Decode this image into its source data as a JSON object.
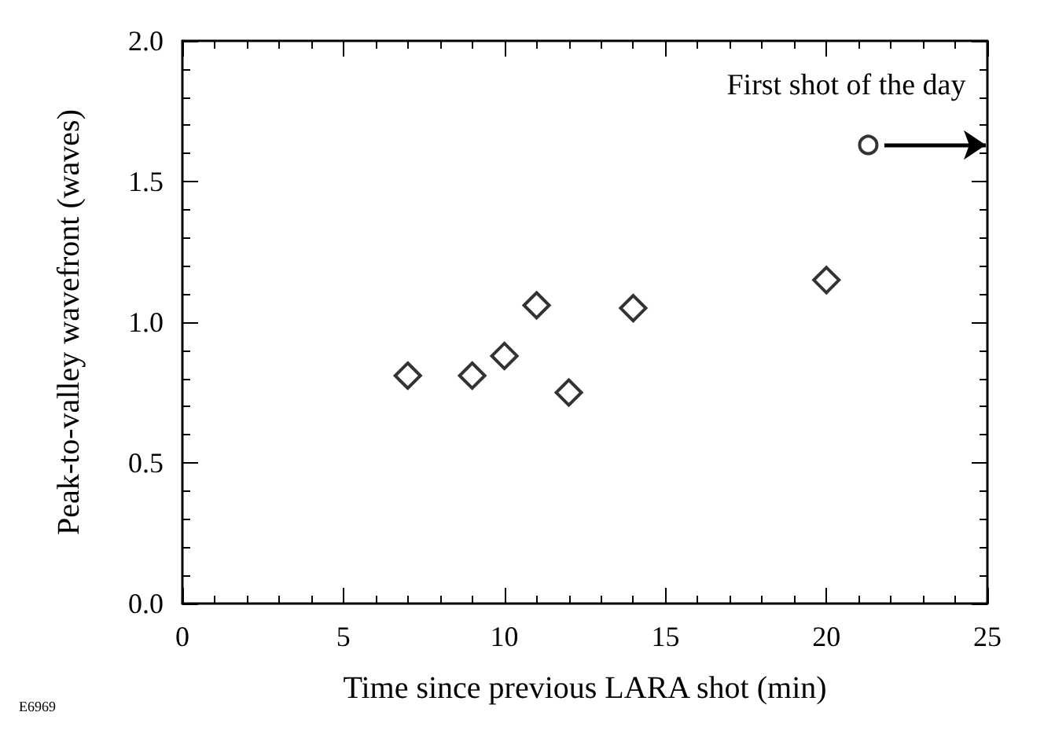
{
  "chart_data": {
    "type": "scatter",
    "xlabel": "Time since previous LARA shot (min)",
    "ylabel": "Peak-to-valley wavefront (waves)",
    "xlim": [
      0,
      25
    ],
    "xticks": [
      {
        "value": 0,
        "label": "0"
      },
      5,
      10,
      15,
      20,
      25
    ],
    "ylim": [
      0,
      2
    ],
    "yticks": [
      {
        "value": 0,
        "label": "0.0"
      },
      {
        "value": 0.5,
        "label": "0.5"
      },
      {
        "value": 1,
        "label": "1.0"
      },
      {
        "value": 1.5,
        "label": "1.5"
      },
      {
        "value": 2,
        "label": "2.0"
      }
    ],
    "grid": false,
    "series": [
      {
        "color": "#000000",
        "marker": "diamond",
        "x": [
          7,
          9,
          10,
          11,
          12,
          14,
          20
        ],
        "values": [
          0.81,
          0.81,
          0.88,
          1.06,
          0.75,
          1.05,
          1.15
        ]
      },
      {
        "color": "#000000",
        "marker": "circle",
        "x": [
          21.3
        ],
        "values": [
          1.63
        ]
      }
    ],
    "annotations": [
      {
        "text": "First shot of the day",
        "x": 21.3,
        "y": 1.63
      },
      "E6969"
    ]
  }
}
